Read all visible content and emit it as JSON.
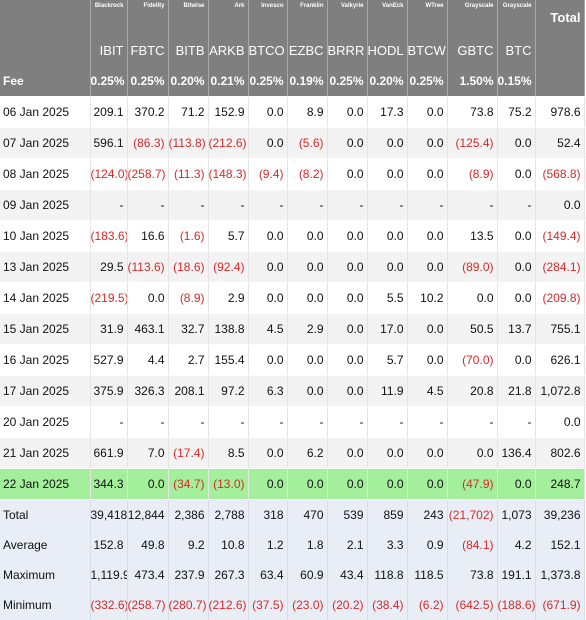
{
  "table": {
    "issuers": [
      "Blackrock",
      "Fidelity",
      "Bitwise",
      "Ark",
      "Invesco",
      "Franklin",
      "Valkyrie",
      "VanEck",
      "WTree",
      "Grayscale",
      "Grayscale"
    ],
    "total_header": "Total",
    "tickers": [
      "IBIT",
      "FBTC",
      "BITB",
      "ARKB",
      "BTCO",
      "EZBC",
      "BRRR",
      "HODL",
      "BTCW",
      "GBTC",
      "BTC"
    ],
    "fee_label": "Fee",
    "fees": [
      "0.25%",
      "0.25%",
      "0.20%",
      "0.21%",
      "0.25%",
      "0.19%",
      "0.25%",
      "0.20%",
      "0.25%",
      "1.50%",
      "0.15%"
    ],
    "rows": [
      {
        "date": "06 Jan 2025",
        "values": [
          "209.1",
          "370.2",
          "71.2",
          "152.9",
          "0.0",
          "8.9",
          "0.0",
          "17.3",
          "0.0",
          "73.8",
          "75.2",
          "978.6"
        ]
      },
      {
        "date": "07 Jan 2025",
        "values": [
          "596.1",
          "(86.3)",
          "(113.8)",
          "(212.6)",
          "0.0",
          "(5.6)",
          "0.0",
          "0.0",
          "0.0",
          "(125.4)",
          "0.0",
          "52.4"
        ]
      },
      {
        "date": "08 Jan 2025",
        "values": [
          "(124.0)",
          "(258.7)",
          "(11.3)",
          "(148.3)",
          "(9.4)",
          "(8.2)",
          "0.0",
          "0.0",
          "0.0",
          "(8.9)",
          "0.0",
          "(568.8)"
        ]
      },
      {
        "date": "09 Jan 2025",
        "values": [
          "-",
          "-",
          "-",
          "-",
          "-",
          "-",
          "-",
          "-",
          "-",
          "-",
          "-",
          "0.0"
        ]
      },
      {
        "date": "10 Jan 2025",
        "values": [
          "(183.6)",
          "16.6",
          "(1.6)",
          "5.7",
          "0.0",
          "0.0",
          "0.0",
          "0.0",
          "0.0",
          "13.5",
          "0.0",
          "(149.4)"
        ]
      },
      {
        "date": "13 Jan 2025",
        "values": [
          "29.5",
          "(113.6)",
          "(18.6)",
          "(92.4)",
          "0.0",
          "0.0",
          "0.0",
          "0.0",
          "0.0",
          "(89.0)",
          "0.0",
          "(284.1)"
        ]
      },
      {
        "date": "14 Jan 2025",
        "values": [
          "(219.5)",
          "0.0",
          "(8.9)",
          "2.9",
          "0.0",
          "0.0",
          "0.0",
          "5.5",
          "10.2",
          "0.0",
          "0.0",
          "(209.8)"
        ]
      },
      {
        "date": "15 Jan 2025",
        "values": [
          "31.9",
          "463.1",
          "32.7",
          "138.8",
          "4.5",
          "2.9",
          "0.0",
          "17.0",
          "0.0",
          "50.5",
          "13.7",
          "755.1"
        ]
      },
      {
        "date": "16 Jan 2025",
        "values": [
          "527.9",
          "4.4",
          "2.7",
          "155.4",
          "0.0",
          "0.0",
          "0.0",
          "5.7",
          "0.0",
          "(70.0)",
          "0.0",
          "626.1"
        ]
      },
      {
        "date": "17 Jan 2025",
        "values": [
          "375.9",
          "326.3",
          "208.1",
          "97.2",
          "6.3",
          "0.0",
          "0.0",
          "11.9",
          "4.5",
          "20.8",
          "21.8",
          "1,072.8"
        ]
      },
      {
        "date": "20 Jan 2025",
        "values": [
          "-",
          "-",
          "-",
          "-",
          "-",
          "-",
          "-",
          "-",
          "-",
          "-",
          "-",
          "0.0"
        ]
      },
      {
        "date": "21 Jan 2025",
        "values": [
          "661.9",
          "7.0",
          "(17.4)",
          "8.5",
          "0.0",
          "6.2",
          "0.0",
          "0.0",
          "0.0",
          "0.0",
          "136.4",
          "802.6"
        ]
      },
      {
        "date": "22 Jan 2025",
        "highlight": true,
        "values": [
          "344.3",
          "0.0",
          "(34.7)",
          "(13.0)",
          "0.0",
          "0.0",
          "0.0",
          "0.0",
          "0.0",
          "(47.9)",
          "0.0",
          "248.7"
        ]
      }
    ],
    "summary": [
      {
        "label": "Total",
        "values": [
          "39,418",
          "12,844",
          "2,386",
          "2,788",
          "318",
          "470",
          "539",
          "859",
          "243",
          "(21,702)",
          "1,073",
          "39,236"
        ]
      },
      {
        "label": "Average",
        "values": [
          "152.8",
          "49.8",
          "9.2",
          "10.8",
          "1.2",
          "1.8",
          "2.1",
          "3.3",
          "0.9",
          "(84.1)",
          "4.2",
          "152.1"
        ]
      },
      {
        "label": "Maximum",
        "values": [
          "1,119.9",
          "473.4",
          "237.9",
          "267.3",
          "63.4",
          "60.9",
          "43.4",
          "118.8",
          "118.5",
          "73.8",
          "191.1",
          "1,373.8"
        ]
      },
      {
        "label": "Minimum",
        "values": [
          "(332.6)",
          "(258.7)",
          "(280.7)",
          "(212.6)",
          "(37.5)",
          "(23.0)",
          "(20.2)",
          "(38.4)",
          "(6.2)",
          "(642.5)",
          "(188.6)",
          "(671.9)"
        ]
      }
    ]
  }
}
